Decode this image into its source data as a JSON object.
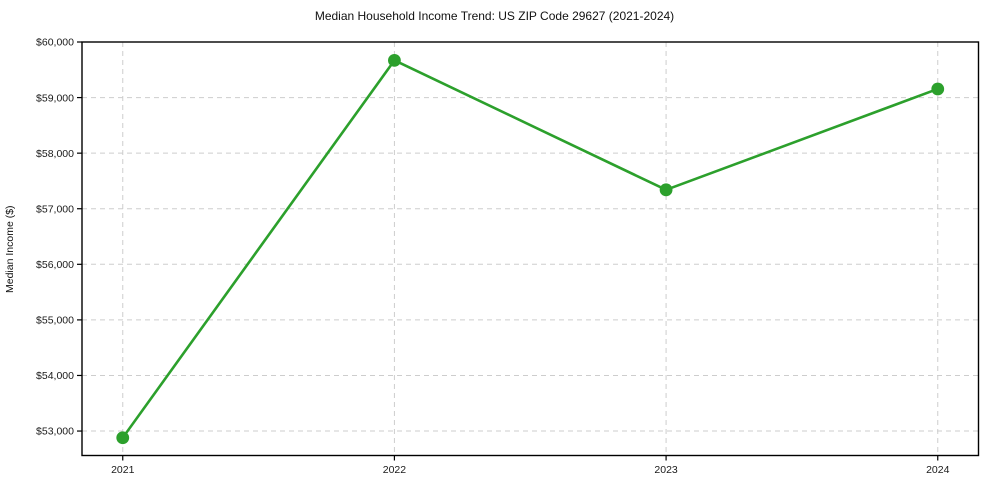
{
  "chart_data": {
    "type": "line",
    "title": "Median Household Income Trend: US ZIP Code 29627 (2021-2024)",
    "xlabel": "",
    "ylabel": "Median Income ($)",
    "x": [
      2021,
      2022,
      2023,
      2024
    ],
    "values": [
      52880,
      59670,
      57340,
      59155
    ],
    "xticks": [
      2021,
      2022,
      2023,
      2024
    ],
    "xtick_labels": [
      "2021",
      "2022",
      "2023",
      "2024"
    ],
    "yticks": [
      53000,
      54000,
      55000,
      56000,
      57000,
      58000,
      59000,
      60000
    ],
    "ytick_labels": [
      "$53,000",
      "$54,000",
      "$55,000",
      "$56,000",
      "$57,000",
      "$58,000",
      "$59,000",
      "$60,000"
    ],
    "xlim": [
      2020.85,
      2024.15
    ],
    "ylim": [
      52560,
      60000
    ],
    "grid": "dashed-both",
    "legend": "none",
    "line_color": "#2ca02c",
    "marker": "circle",
    "marker_radius": 6.4,
    "line_width": 2.6,
    "background": "#ffffff"
  }
}
